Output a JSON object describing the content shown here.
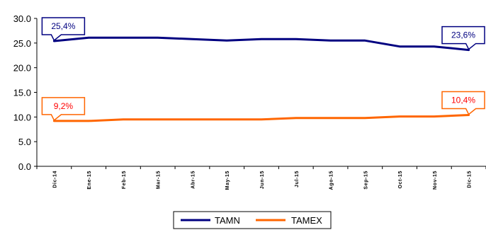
{
  "chart_data": {
    "type": "line",
    "categories": [
      "Dic-14",
      "Ene-15",
      "Feb-15",
      "Mar-15",
      "Abr-15",
      "May-15",
      "Jun-15",
      "Jul-15",
      "Ago-15",
      "Sep-15",
      "Oct-15",
      "Nov-15",
      "Dic-15"
    ],
    "series": [
      {
        "name": "TAMN",
        "color": "#000080",
        "values": [
          25.4,
          26.1,
          26.1,
          26.1,
          25.8,
          25.5,
          25.8,
          25.8,
          25.5,
          25.5,
          24.3,
          24.3,
          23.6
        ]
      },
      {
        "name": "TAMEX",
        "color": "#FF6600",
        "values": [
          9.2,
          9.2,
          9.5,
          9.5,
          9.5,
          9.5,
          9.5,
          9.8,
          9.8,
          9.8,
          10.1,
          10.1,
          10.4
        ]
      }
    ],
    "ylim": [
      0,
      30
    ],
    "yticks": [
      "0.0",
      "5.0",
      "10.0",
      "15.0",
      "20.0",
      "25.0",
      "30.0"
    ],
    "grid": false,
    "legend": "bottom",
    "callouts": [
      {
        "series": 0,
        "index": 0,
        "label": "25,4%",
        "color": "#000080",
        "border": "#000080"
      },
      {
        "series": 0,
        "index": 12,
        "label": "23,6%",
        "color": "#000080",
        "border": "#000080"
      },
      {
        "series": 1,
        "index": 0,
        "label": "9,2%",
        "color": "#FF0000",
        "border": "#FF6600"
      },
      {
        "series": 1,
        "index": 12,
        "label": "10,4%",
        "color": "#FF0000",
        "border": "#FF6600"
      }
    ]
  }
}
